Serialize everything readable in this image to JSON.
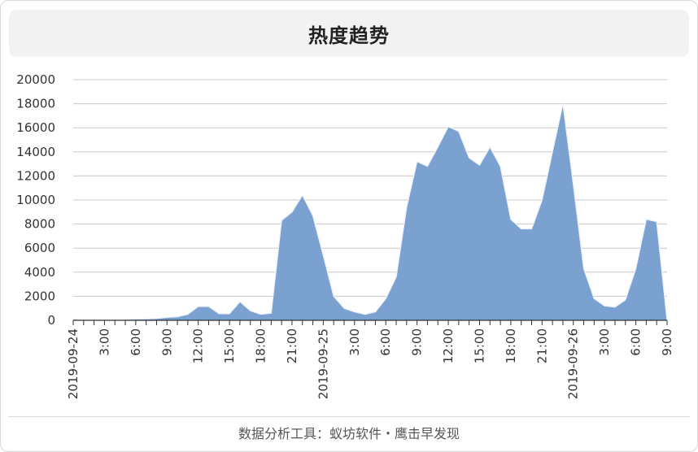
{
  "title": "热度趋势",
  "footer": "数据分析工具：蚁坊软件・鹰击早发现",
  "colors": {
    "area_fill": "#7aa1d0",
    "area_stroke": "#eef3fb",
    "grid": "#c8c8c8",
    "axis": "#333333"
  },
  "chart_data": {
    "type": "area",
    "title": "热度趋势",
    "xlabel": "",
    "ylabel": "",
    "ylim": [
      0,
      20000
    ],
    "y_ticks": [
      0,
      2000,
      4000,
      6000,
      8000,
      10000,
      12000,
      14000,
      16000,
      18000,
      20000
    ],
    "x_tick_labels": [
      {
        "hour": 0,
        "label": "2019-09-24"
      },
      {
        "hour": 3,
        "label": "3:00"
      },
      {
        "hour": 6,
        "label": "6:00"
      },
      {
        "hour": 9,
        "label": "9:00"
      },
      {
        "hour": 12,
        "label": "12:00"
      },
      {
        "hour": 15,
        "label": "15:00"
      },
      {
        "hour": 18,
        "label": "18:00"
      },
      {
        "hour": 21,
        "label": "21:00"
      },
      {
        "hour": 24,
        "label": "2019-09-25"
      },
      {
        "hour": 27,
        "label": "3:00"
      },
      {
        "hour": 30,
        "label": "6:00"
      },
      {
        "hour": 33,
        "label": "9:00"
      },
      {
        "hour": 36,
        "label": "12:00"
      },
      {
        "hour": 39,
        "label": "15:00"
      },
      {
        "hour": 42,
        "label": "18:00"
      },
      {
        "hour": 45,
        "label": "21:00"
      },
      {
        "hour": 48,
        "label": "2019-09-26"
      },
      {
        "hour": 51,
        "label": "3:00"
      },
      {
        "hour": 54,
        "label": "6:00"
      },
      {
        "hour": 57,
        "label": "9:00"
      }
    ],
    "x_hours_range": [
      0,
      57
    ],
    "values": [
      100,
      50,
      50,
      50,
      50,
      80,
      100,
      120,
      150,
      250,
      300,
      500,
      1150,
      1150,
      550,
      550,
      1550,
      800,
      500,
      600,
      8300,
      9000,
      10400,
      8700,
      5400,
      2000,
      1000,
      700,
      500,
      700,
      1800,
      3600,
      9400,
      13200,
      12800,
      14400,
      16100,
      15700,
      13500,
      12900,
      14400,
      12800,
      8400,
      7600,
      7600,
      10000,
      14000,
      18000,
      11300,
      4300,
      1800,
      1200,
      1100,
      1700,
      4300,
      8400,
      8200,
      0
    ]
  }
}
